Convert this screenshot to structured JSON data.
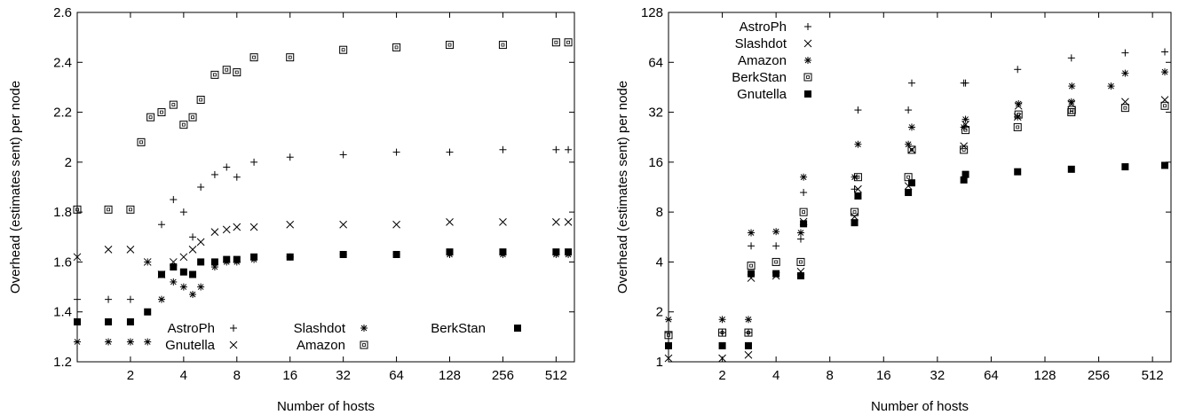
{
  "chart_data": [
    {
      "type": "scatter",
      "xlabel": "Number of hosts",
      "ylabel": "Overhead (estimates sent) per node",
      "x_scale": "log2",
      "xlim": [
        1,
        650
      ],
      "ylim": [
        1.2,
        2.6
      ],
      "xticks": [
        2,
        4,
        8,
        16,
        32,
        64,
        128,
        256,
        512
      ],
      "xtick_labels": [
        "2",
        "4",
        "8",
        "16",
        "32",
        "64",
        "128",
        "256",
        "512"
      ],
      "yticks": [
        1.2,
        1.4,
        1.6,
        1.8,
        2,
        2.2,
        2.4,
        2.6
      ],
      "ytick_labels": [
        "1.2",
        "1.4",
        "1.6",
        "1.8",
        "2",
        "2.2",
        "2.4",
        "2.6"
      ],
      "legend_position": "bottom",
      "series": [
        {
          "name": "AstroPh",
          "marker": "plus",
          "values": [
            [
              1,
              1.45
            ],
            [
              1.5,
              1.45
            ],
            [
              2,
              1.45
            ],
            [
              2.5,
              1.6
            ],
            [
              3,
              1.75
            ],
            [
              3.5,
              1.85
            ],
            [
              4,
              1.8
            ],
            [
              4.5,
              1.7
            ],
            [
              5,
              1.9
            ],
            [
              6,
              1.95
            ],
            [
              7,
              1.98
            ],
            [
              8,
              1.94
            ],
            [
              10,
              2.0
            ],
            [
              16,
              2.02
            ],
            [
              32,
              2.03
            ],
            [
              64,
              2.04
            ],
            [
              128,
              2.04
            ],
            [
              256,
              2.05
            ],
            [
              512,
              2.05
            ],
            [
              600,
              2.05
            ]
          ]
        },
        {
          "name": "Slashdot",
          "marker": "asterisk",
          "values": [
            [
              1,
              1.28
            ],
            [
              1.5,
              1.28
            ],
            [
              2,
              1.28
            ],
            [
              2.5,
              1.28
            ],
            [
              3,
              1.45
            ],
            [
              3.5,
              1.52
            ],
            [
              4,
              1.5
            ],
            [
              4.5,
              1.47
            ],
            [
              5,
              1.5
            ],
            [
              6,
              1.58
            ],
            [
              7,
              1.6
            ],
            [
              8,
              1.6
            ],
            [
              10,
              1.61
            ],
            [
              16,
              1.62
            ],
            [
              32,
              1.63
            ],
            [
              64,
              1.63
            ],
            [
              128,
              1.63
            ],
            [
              256,
              1.63
            ],
            [
              512,
              1.63
            ],
            [
              600,
              1.63
            ]
          ]
        },
        {
          "name": "BerkStan",
          "marker": "filled-square",
          "values": [
            [
              1,
              1.36
            ],
            [
              1.5,
              1.36
            ],
            [
              2,
              1.36
            ],
            [
              2.5,
              1.4
            ],
            [
              3,
              1.55
            ],
            [
              3.5,
              1.58
            ],
            [
              4,
              1.56
            ],
            [
              4.5,
              1.55
            ],
            [
              5,
              1.6
            ],
            [
              6,
              1.6
            ],
            [
              7,
              1.61
            ],
            [
              8,
              1.61
            ],
            [
              10,
              1.62
            ],
            [
              16,
              1.62
            ],
            [
              32,
              1.63
            ],
            [
              64,
              1.63
            ],
            [
              128,
              1.64
            ],
            [
              256,
              1.64
            ],
            [
              512,
              1.64
            ],
            [
              600,
              1.64
            ]
          ]
        },
        {
          "name": "Gnutella",
          "marker": "cross",
          "values": [
            [
              1,
              1.62
            ],
            [
              1.5,
              1.65
            ],
            [
              2,
              1.65
            ],
            [
              2.5,
              1.6
            ],
            [
              3,
              1.55
            ],
            [
              3.5,
              1.6
            ],
            [
              4,
              1.62
            ],
            [
              4.5,
              1.65
            ],
            [
              5,
              1.68
            ],
            [
              6,
              1.72
            ],
            [
              7,
              1.73
            ],
            [
              8,
              1.74
            ],
            [
              10,
              1.74
            ],
            [
              16,
              1.75
            ],
            [
              32,
              1.75
            ],
            [
              64,
              1.75
            ],
            [
              128,
              1.76
            ],
            [
              256,
              1.76
            ],
            [
              512,
              1.76
            ],
            [
              600,
              1.76
            ]
          ]
        },
        {
          "name": "Amazon",
          "marker": "open-square",
          "values": [
            [
              1,
              1.81
            ],
            [
              1.5,
              1.81
            ],
            [
              2,
              1.81
            ],
            [
              2.3,
              2.08
            ],
            [
              2.6,
              2.18
            ],
            [
              3,
              2.2
            ],
            [
              3.5,
              2.23
            ],
            [
              4,
              2.15
            ],
            [
              4.5,
              2.18
            ],
            [
              5,
              2.25
            ],
            [
              6,
              2.35
            ],
            [
              7,
              2.37
            ],
            [
              8,
              2.36
            ],
            [
              10,
              2.42
            ],
            [
              16,
              2.42
            ],
            [
              32,
              2.45
            ],
            [
              64,
              2.46
            ],
            [
              128,
              2.47
            ],
            [
              256,
              2.47
            ],
            [
              512,
              2.48
            ],
            [
              600,
              2.48
            ]
          ]
        }
      ]
    },
    {
      "type": "scatter",
      "xlabel": "Number of hosts",
      "ylabel": "Overhead (estimates sent) per node",
      "x_scale": "log2",
      "y_scale": "log2",
      "xlim": [
        1,
        650
      ],
      "ylim": [
        1,
        128
      ],
      "xticks": [
        2,
        4,
        8,
        16,
        32,
        64,
        128,
        256,
        512
      ],
      "xtick_labels": [
        "2",
        "4",
        "8",
        "16",
        "32",
        "64",
        "128",
        "256",
        "512"
      ],
      "yticks": [
        1,
        2,
        4,
        8,
        16,
        32,
        64,
        128
      ],
      "ytick_labels": [
        "1",
        "2",
        "4",
        "8",
        "16",
        "32",
        "64",
        "128"
      ],
      "legend_position": "top-left",
      "series": [
        {
          "name": "AstroPh",
          "marker": "plus",
          "values": [
            [
              1,
              1.5
            ],
            [
              2,
              1.5
            ],
            [
              2.8,
              1.5
            ],
            [
              2.9,
              5.0
            ],
            [
              4,
              5.0
            ],
            [
              5.5,
              5.5
            ],
            [
              5.7,
              10.5
            ],
            [
              11,
              11.0
            ],
            [
              11.5,
              33.0
            ],
            [
              22,
              33.0
            ],
            [
              23,
              48.0
            ],
            [
              45,
              48.0
            ],
            [
              46,
              48.0
            ],
            [
              90,
              58.0
            ],
            [
              180,
              68.0
            ],
            [
              360,
              73.0
            ],
            [
              600,
              74.0
            ]
          ]
        },
        {
          "name": "Slashdot",
          "marker": "cross",
          "values": [
            [
              1,
              1.05
            ],
            [
              2,
              1.05
            ],
            [
              2.8,
              1.1
            ],
            [
              2.9,
              3.2
            ],
            [
              4,
              3.3
            ],
            [
              5.5,
              3.5
            ],
            [
              5.7,
              7.0
            ],
            [
              11,
              7.5
            ],
            [
              11.5,
              11.0
            ],
            [
              22,
              11.5
            ],
            [
              23,
              19.0
            ],
            [
              45,
              20.0
            ],
            [
              46,
              27.0
            ],
            [
              90,
              30.0
            ],
            [
              91,
              35.0
            ],
            [
              180,
              36.0
            ],
            [
              360,
              37.0
            ],
            [
              600,
              38.0
            ]
          ]
        },
        {
          "name": "Amazon",
          "marker": "asterisk",
          "values": [
            [
              1,
              1.8
            ],
            [
              2,
              1.8
            ],
            [
              2.8,
              1.8
            ],
            [
              2.9,
              6.0
            ],
            [
              4,
              6.1
            ],
            [
              5.5,
              6.0
            ],
            [
              5.7,
              13.0
            ],
            [
              11,
              13.0
            ],
            [
              11.5,
              20.5
            ],
            [
              22,
              20.5
            ],
            [
              23,
              26.0
            ],
            [
              45,
              26.0
            ],
            [
              46,
              29.0
            ],
            [
              90,
              30.0
            ],
            [
              91,
              36.0
            ],
            [
              180,
              37.0
            ],
            [
              181,
              46.0
            ],
            [
              300,
              46.0
            ],
            [
              360,
              55.0
            ],
            [
              600,
              56.0
            ]
          ]
        },
        {
          "name": "BerkStan",
          "marker": "open-square",
          "values": [
            [
              1,
              1.45
            ],
            [
              2,
              1.5
            ],
            [
              2.8,
              1.5
            ],
            [
              2.9,
              3.8
            ],
            [
              4,
              4.0
            ],
            [
              5.5,
              4.0
            ],
            [
              5.7,
              8.0
            ],
            [
              11,
              8.0
            ],
            [
              11.5,
              13.0
            ],
            [
              22,
              13.0
            ],
            [
              23,
              19.0
            ],
            [
              45,
              19.0
            ],
            [
              46,
              25.0
            ],
            [
              90,
              26.0
            ],
            [
              91,
              31.0
            ],
            [
              180,
              32.0
            ],
            [
              181,
              33.0
            ],
            [
              360,
              34.0
            ],
            [
              600,
              35.0
            ]
          ]
        },
        {
          "name": "Gnutella",
          "marker": "filled-square",
          "values": [
            [
              1,
              1.25
            ],
            [
              2,
              1.25
            ],
            [
              2.8,
              1.25
            ],
            [
              2.9,
              3.4
            ],
            [
              4,
              3.4
            ],
            [
              5.5,
              3.3
            ],
            [
              5.7,
              6.8
            ],
            [
              11,
              6.9
            ],
            [
              11.5,
              10.0
            ],
            [
              22,
              10.5
            ],
            [
              23,
              12.0
            ],
            [
              45,
              12.5
            ],
            [
              46,
              13.5
            ],
            [
              90,
              14.0
            ],
            [
              180,
              14.5
            ],
            [
              360,
              15.0
            ],
            [
              600,
              15.3
            ]
          ]
        }
      ]
    }
  ]
}
